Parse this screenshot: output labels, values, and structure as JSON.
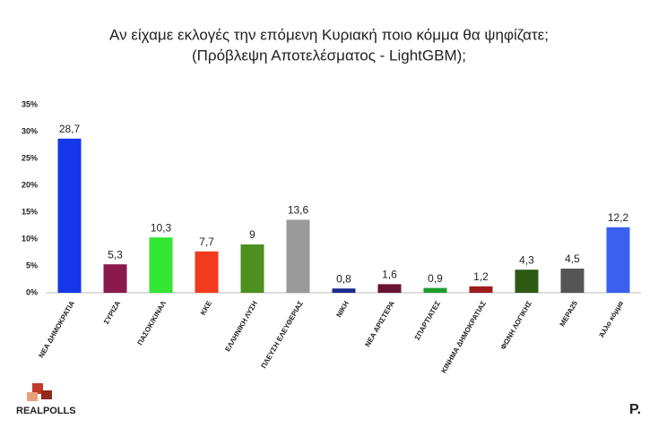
{
  "chart_data": {
    "type": "bar",
    "title": "Αν είχαμε εκλογές την επόμενη Κυριακή ποιο κόμμα θα ψηφίζατε;",
    "subtitle": "(Πρόβλεψη Αποτελέσματος - LightGBM);",
    "categories": [
      "ΝΕΑ ΔΗΜΟΚΡΑΤΙΑ",
      "ΣΥΡΙΖΑ",
      "ΠΑΣΟΚ/ΚΙΝΑΛ",
      "ΚΚΕ",
      "ΕΛΛΗΝΙΚΗ ΛΥΣΗ",
      "ΠΛΕΥΣΗ ΕΛΕΥΘΕΡΙΑΣ",
      "ΝΙΚΗ",
      "ΝΕΑ ΑΡΙΣΤΕΡΑ",
      "ΣΠΑΡΤΙΑΤΕΣ",
      "ΚΙΝΗΜΑ ΔΗΜΟΚΡΑΤΙΑΣ",
      "ΦΩΝΗ ΛΟΓΙΚΗΣ",
      "ΜΕΡΑ25",
      "Άλλο κόμμα"
    ],
    "values": [
      28.7,
      5.3,
      10.3,
      7.7,
      9,
      13.6,
      0.8,
      1.6,
      0.9,
      1.2,
      4.3,
      4.5,
      12.2
    ],
    "value_labels": [
      "28,7",
      "5,3",
      "10,3",
      "7,7",
      "9",
      "13,6",
      "0,8",
      "1,6",
      "0,9",
      "1,2",
      "4,3",
      "4,5",
      "12,2"
    ],
    "colors": [
      "#1638e8",
      "#8a1a4c",
      "#33e633",
      "#f23b1f",
      "#4e8f1f",
      "#9a9a9a",
      "#1a2a8f",
      "#6b1232",
      "#1c9e2c",
      "#9e1c1c",
      "#2c5a12",
      "#555555",
      "#3a60f2"
    ],
    "ylim": [
      0,
      35
    ],
    "yticks": [
      {
        "value": 0,
        "label": "0%"
      },
      {
        "value": 5,
        "label": "5%"
      },
      {
        "value": 10,
        "label": "10%"
      },
      {
        "value": 15,
        "label": "15%"
      },
      {
        "value": 20,
        "label": "20%"
      },
      {
        "value": 25,
        "label": "25%"
      },
      {
        "value": 30,
        "label": "30%"
      },
      {
        "value": 35,
        "label": "35%"
      }
    ],
    "grid": false
  },
  "logos": {
    "left": "REALPOLLS",
    "right": "P."
  }
}
